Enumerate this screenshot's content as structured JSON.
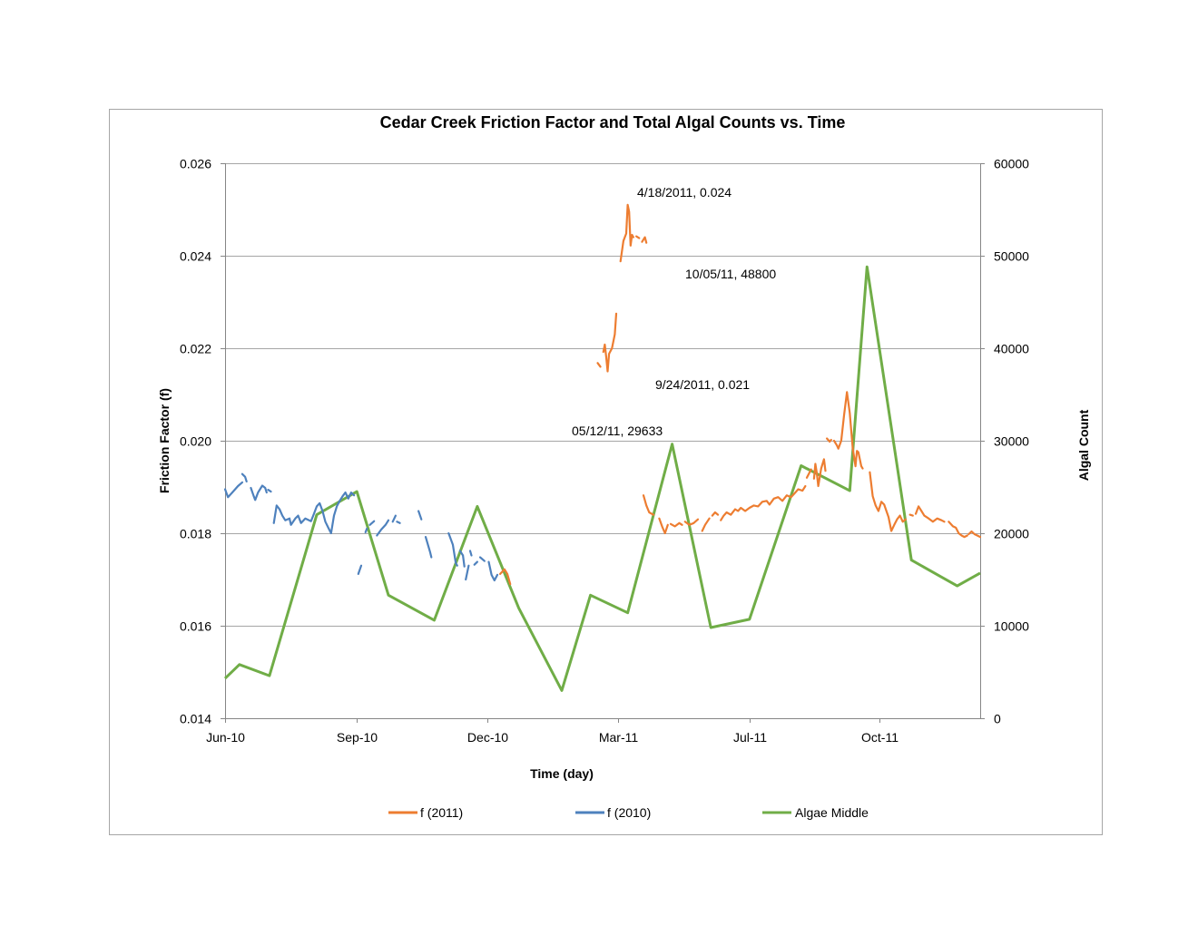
{
  "chart_data": {
    "type": "line",
    "title": "Cedar Creek Friction Factor and Total Algal Counts vs. Time",
    "xlabel": "Time (day)",
    "ylabel": "Friction Factor (f)",
    "y2label": "Algal Count",
    "x_ticks": [
      "Jun-10",
      "Sep-10",
      "Dec-10",
      "Mar-11",
      "Jul-11",
      "Oct-11"
    ],
    "x_tick_days": [
      0,
      92,
      183,
      274,
      366,
      457
    ],
    "x_max_day": 527,
    "ylim": [
      0.014,
      0.026
    ],
    "y_ticks": [
      "0.026",
      "0.024",
      "0.022",
      "0.020",
      "0.018",
      "0.016",
      "0.014"
    ],
    "y_tick_values": [
      0.026,
      0.024,
      0.022,
      0.02,
      0.018,
      0.016,
      0.014
    ],
    "y2lim": [
      0,
      60000
    ],
    "y2_ticks": [
      "60000",
      "50000",
      "40000",
      "30000",
      "20000",
      "10000",
      "0"
    ],
    "y2_tick_values": [
      60000,
      50000,
      40000,
      30000,
      20000,
      10000,
      0
    ],
    "grid": true,
    "colors": {
      "f2011": "#ED7D31",
      "f2010": "#4E81BD",
      "algae": "#70AD47",
      "grid": "#A6A6A6",
      "axis": "#868686"
    },
    "series": [
      {
        "name": "f (2010)",
        "axis": "left",
        "color": "#4E81BD",
        "segments": [
          [
            [
              0,
              0.01895
            ],
            [
              2,
              0.01878
            ],
            [
              5,
              0.01888
            ],
            [
              9,
              0.01902
            ],
            [
              12,
              0.0191
            ]
          ],
          [
            [
              12,
              0.01928
            ],
            [
              14,
              0.01922
            ],
            [
              15,
              0.01912
            ]
          ],
          [
            [
              18,
              0.01898
            ],
            [
              20,
              0.0188
            ],
            [
              21,
              0.01872
            ],
            [
              23,
              0.01888
            ],
            [
              26,
              0.01903
            ],
            [
              28,
              0.01898
            ],
            [
              29,
              0.01888
            ]
          ],
          [
            [
              30,
              0.01894
            ],
            [
              32,
              0.0189
            ]
          ],
          [
            [
              34,
              0.01822
            ],
            [
              36,
              0.0186
            ],
            [
              38,
              0.01852
            ],
            [
              40,
              0.01838
            ],
            [
              42,
              0.01828
            ],
            [
              45,
              0.01832
            ],
            [
              46,
              0.01818
            ],
            [
              49,
              0.01832
            ],
            [
              51,
              0.01838
            ],
            [
              53,
              0.01822
            ],
            [
              56,
              0.01832
            ],
            [
              60,
              0.01826
            ],
            [
              62,
              0.01842
            ],
            [
              64,
              0.01858
            ],
            [
              66,
              0.01865
            ],
            [
              68,
              0.01848
            ],
            [
              70,
              0.01825
            ],
            [
              72,
              0.01812
            ],
            [
              74,
              0.018
            ],
            [
              76,
              0.01838
            ],
            [
              78,
              0.01858
            ],
            [
              80,
              0.0187
            ],
            [
              82,
              0.0188
            ],
            [
              84,
              0.01888
            ],
            [
              86,
              0.01875
            ],
            [
              88,
              0.01888
            ],
            [
              90,
              0.01882
            ]
          ],
          [
            [
              93,
              0.01712
            ],
            [
              95,
              0.0173
            ]
          ],
          [
            [
              98,
              0.01802
            ],
            [
              99,
              0.0181
            ]
          ],
          [
            [
              101,
              0.01818
            ],
            [
              104,
              0.01826
            ]
          ],
          [
            [
              106,
              0.01795
            ],
            [
              109,
              0.01808
            ],
            [
              112,
              0.01818
            ],
            [
              114,
              0.01828
            ]
          ],
          [
            [
              117,
              0.01825
            ],
            [
              119,
              0.01838
            ]
          ],
          [
            [
              120,
              0.01825
            ],
            [
              122,
              0.01822
            ]
          ],
          [
            [
              135,
              0.01848
            ],
            [
              137,
              0.0183
            ]
          ],
          [
            [
              140,
              0.01792
            ],
            [
              143,
              0.0176
            ],
            [
              144,
              0.01748
            ]
          ],
          [
            [
              156,
              0.018
            ],
            [
              159,
              0.01775
            ],
            [
              161,
              0.01735
            ],
            [
              162,
              0.0173
            ]
          ],
          [
            [
              164,
              0.01762
            ],
            [
              166,
              0.01752
            ],
            [
              167,
              0.01728
            ]
          ],
          [
            [
              168,
              0.017
            ],
            [
              170,
              0.0173
            ]
          ],
          [
            [
              171,
              0.01762
            ],
            [
              172,
              0.01752
            ]
          ],
          [
            [
              174,
              0.01732
            ],
            [
              176,
              0.01738
            ]
          ],
          [
            [
              178,
              0.01748
            ],
            [
              181,
              0.0174
            ]
          ],
          [
            [
              184,
              0.01738
            ],
            [
              186,
              0.0171
            ],
            [
              188,
              0.01698
            ],
            [
              190,
              0.0171
            ]
          ]
        ]
      },
      {
        "name": "f (2011)",
        "axis": "left",
        "color": "#ED7D31",
        "segments": [
          [
            [
              192,
              0.01712
            ],
            [
              195,
              0.01722
            ],
            [
              197,
              0.01712
            ],
            [
              199,
              0.0169
            ]
          ],
          [
            [
              260,
              0.02168
            ],
            [
              262,
              0.0216
            ]
          ],
          [
            [
              264,
              0.02192
            ],
            [
              265,
              0.02208
            ],
            [
              266,
              0.02182
            ],
            [
              267,
              0.0215
            ],
            [
              268,
              0.02188
            ],
            [
              270,
              0.022
            ],
            [
              272,
              0.0223
            ],
            [
              273,
              0.02275
            ]
          ],
          [
            [
              276,
              0.02388
            ],
            [
              278,
              0.02432
            ],
            [
              280,
              0.02448
            ],
            [
              281,
              0.0251
            ],
            [
              282,
              0.02495
            ],
            [
              283,
              0.02422
            ],
            [
              284,
              0.02445
            ],
            [
              285,
              0.0244
            ]
          ],
          [
            [
              287,
              0.02442
            ],
            [
              289,
              0.02438
            ]
          ],
          [
            [
              291,
              0.0243
            ],
            [
              293,
              0.0244
            ],
            [
              294,
              0.02428
            ]
          ],
          [
            [
              292,
              0.01882
            ],
            [
              294,
              0.0186
            ],
            [
              296,
              0.01845
            ],
            [
              299,
              0.0184
            ]
          ],
          [
            [
              303,
              0.01832
            ],
            [
              305,
              0.01815
            ],
            [
              307,
              0.018
            ],
            [
              309,
              0.01818
            ]
          ],
          [
            [
              311,
              0.0182
            ],
            [
              314,
              0.01815
            ],
            [
              317,
              0.01822
            ],
            [
              319,
              0.01818
            ]
          ],
          [
            [
              321,
              0.01825
            ],
            [
              324,
              0.01818
            ],
            [
              327,
              0.01822
            ],
            [
              330,
              0.0183
            ]
          ],
          [
            [
              333,
              0.01805
            ],
            [
              335,
              0.01818
            ],
            [
              338,
              0.01832
            ]
          ],
          [
            [
              340,
              0.01838
            ],
            [
              342,
              0.01845
            ],
            [
              344,
              0.0184
            ]
          ],
          [
            [
              346,
              0.01828
            ],
            [
              348,
              0.01838
            ],
            [
              350,
              0.01845
            ],
            [
              353,
              0.0184
            ],
            [
              356,
              0.01852
            ],
            [
              358,
              0.01848
            ],
            [
              360,
              0.01855
            ],
            [
              363,
              0.01848
            ],
            [
              366,
              0.01855
            ],
            [
              369,
              0.0186
            ],
            [
              372,
              0.01858
            ],
            [
              375,
              0.01868
            ],
            [
              378,
              0.0187
            ],
            [
              380,
              0.01862
            ],
            [
              383,
              0.01875
            ],
            [
              386,
              0.01878
            ],
            [
              389,
              0.0187
            ],
            [
              392,
              0.01882
            ],
            [
              395,
              0.01878
            ],
            [
              398,
              0.01888
            ],
            [
              400,
              0.01895
            ],
            [
              403,
              0.01892
            ],
            [
              405,
              0.01902
            ]
          ],
          [
            [
              406,
              0.0192
            ],
            [
              409,
              0.01938
            ]
          ],
          [
            [
              411,
              0.01918
            ],
            [
              412,
              0.0195
            ],
            [
              413,
              0.0193
            ],
            [
              414,
              0.01902
            ],
            [
              416,
              0.0194
            ],
            [
              418,
              0.0196
            ],
            [
              419,
              0.01935
            ]
          ],
          [
            [
              420,
              0.02005
            ],
            [
              422,
              0.01998
            ],
            [
              423,
              0.02002
            ]
          ],
          [
            [
              425,
              0.02
            ],
            [
              427,
              0.0199
            ],
            [
              428,
              0.01983
            ],
            [
              430,
              0.02
            ],
            [
              432,
              0.02055
            ],
            [
              434,
              0.02105
            ],
            [
              436,
              0.0206
            ],
            [
              438,
              0.01985
            ],
            [
              440,
              0.01945
            ],
            [
              441,
              0.01978
            ],
            [
              442,
              0.01975
            ],
            [
              444,
              0.01945
            ],
            [
              445,
              0.0194
            ]
          ],
          [
            [
              450,
              0.01932
            ],
            [
              452,
              0.0188
            ],
            [
              454,
              0.0186
            ],
            [
              456,
              0.01848
            ],
            [
              458,
              0.01868
            ],
            [
              460,
              0.01862
            ],
            [
              463,
              0.01835
            ],
            [
              465,
              0.01805
            ],
            [
              467,
              0.01818
            ],
            [
              469,
              0.0183
            ],
            [
              471,
              0.01838
            ],
            [
              473,
              0.01825
            ],
            [
              475,
              0.0183
            ]
          ],
          [
            [
              478,
              0.0184
            ],
            [
              480,
              0.01838
            ]
          ],
          [
            [
              482,
              0.01842
            ],
            [
              484,
              0.01858
            ],
            [
              486,
              0.01848
            ],
            [
              488,
              0.01838
            ],
            [
              491,
              0.01832
            ],
            [
              494,
              0.01825
            ],
            [
              497,
              0.01832
            ],
            [
              500,
              0.01828
            ],
            [
              502,
              0.01825
            ]
          ],
          [
            [
              505,
              0.01825
            ],
            [
              508,
              0.01815
            ],
            [
              510,
              0.01812
            ],
            [
              512,
              0.018
            ],
            [
              514,
              0.01795
            ],
            [
              516,
              0.01792
            ],
            [
              518,
              0.01795
            ]
          ],
          [
            [
              519,
              0.01798
            ],
            [
              521,
              0.01804
            ],
            [
              523,
              0.01798
            ],
            [
              525,
              0.01795
            ],
            [
              527,
              0.01792
            ]
          ]
        ]
      },
      {
        "name": "Algae Middle",
        "axis": "right",
        "color": "#70AD47",
        "x": [
          0,
          10,
          31,
          64,
          92,
          114,
          146,
          176,
          205,
          235,
          255,
          281,
          312,
          339,
          366,
          402,
          436,
          448,
          479,
          511,
          527
        ],
        "values": [
          4300,
          5800,
          4600,
          22000,
          24500,
          13300,
          10600,
          22900,
          11900,
          3000,
          13300,
          11400,
          29633,
          9800,
          10700,
          27300,
          24600,
          48800,
          17100,
          14300,
          15700
        ]
      }
    ],
    "annotations": [
      "4/18/2011, 0.024",
      "10/05/11, 48800",
      "9/24/2011, 0.021",
      "05/12/11, 29633"
    ],
    "legend": [
      "f (2011)",
      "f (2010)",
      "Algae Middle"
    ],
    "legend_position": "bottom"
  }
}
